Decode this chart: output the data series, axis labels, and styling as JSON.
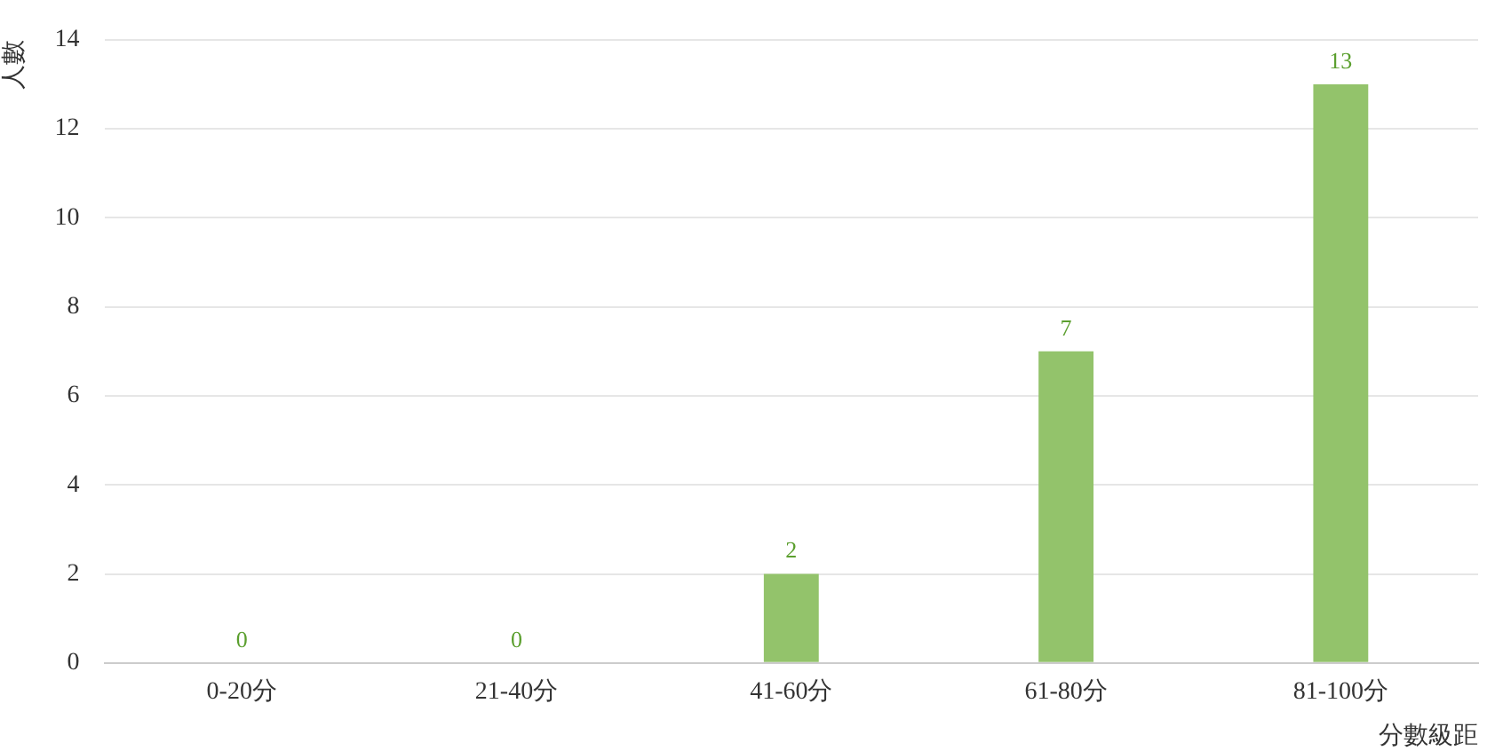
{
  "chart_data": {
    "type": "bar",
    "xlabel": "分數級距",
    "ylabel": "人數",
    "categories": [
      "0-20分",
      "21-40分",
      "41-60分",
      "61-80分",
      "81-100分"
    ],
    "values": [
      0,
      0,
      2,
      7,
      13
    ],
    "color": "#93c36b",
    "ylim": [
      0,
      14
    ],
    "yticks": [
      0,
      2,
      4,
      6,
      8,
      10,
      12,
      14
    ],
    "grid": "y",
    "data_labels": true,
    "legend": false
  }
}
